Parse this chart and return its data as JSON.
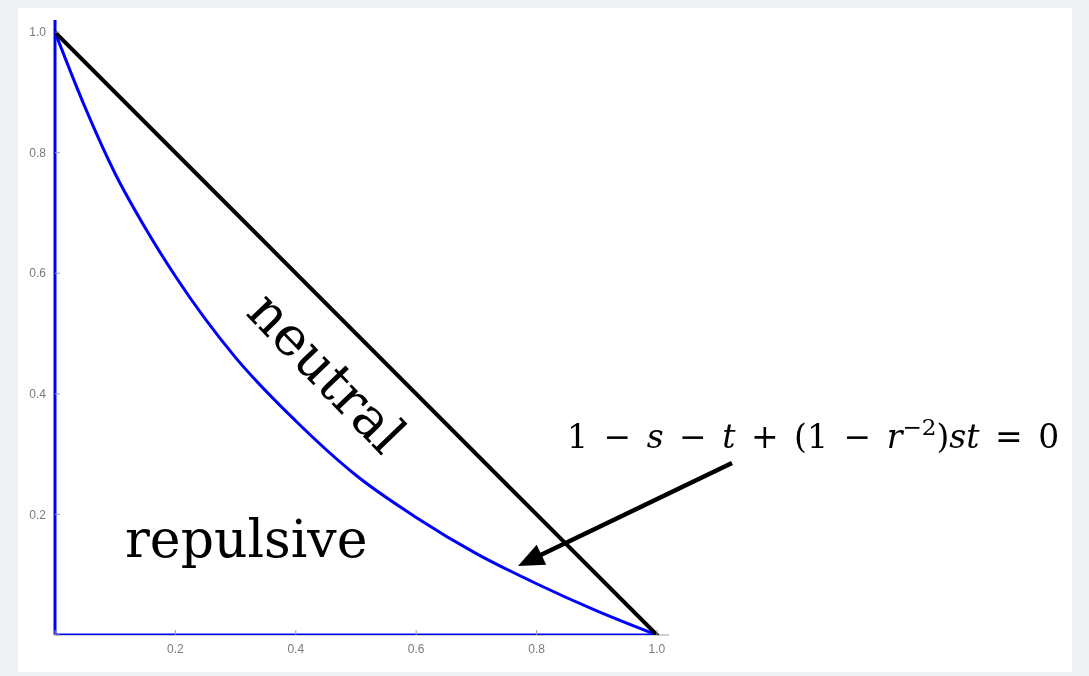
{
  "chart_data": {
    "type": "line",
    "xlim": [
      0,
      1.02
    ],
    "ylim": [
      0,
      1.02
    ],
    "xticks": [
      {
        "value": 0,
        "label": null
      },
      0.2,
      0.4,
      0.6,
      0.8,
      {
        "value": 1,
        "label": "1.0"
      }
    ],
    "yticks": [
      {
        "value": 0,
        "label": null
      },
      0.2,
      0.4,
      0.6,
      0.8,
      {
        "value": 1,
        "label": "1.0"
      }
    ],
    "series": [
      {
        "color": "#0000ff",
        "x": [
          0,
          0.05,
          0.1,
          0.15,
          0.2,
          0.3,
          0.4,
          0.5,
          0.6,
          0.7,
          0.8,
          0.9,
          1
        ],
        "values": [
          1,
          0.875,
          0.765,
          0.675,
          0.595,
          0.46,
          0.355,
          0.265,
          0.195,
          0.135,
          0.085,
          0.04,
          0
        ]
      },
      {
        "color": "#0000ff",
        "x": [
          0,
          1
        ],
        "values": [
          0,
          0
        ]
      },
      {
        "color": "#000000",
        "x": [
          0,
          1
        ],
        "values": [
          1,
          0
        ]
      }
    ],
    "ref_lines": [
      {
        "axis": "x",
        "value": 0,
        "color": "#0000ff"
      }
    ],
    "annotations": [
      "neutral",
      "repulsive",
      "1 − s − t + (1 − r$^{−2}$)st = 0"
    ]
  }
}
